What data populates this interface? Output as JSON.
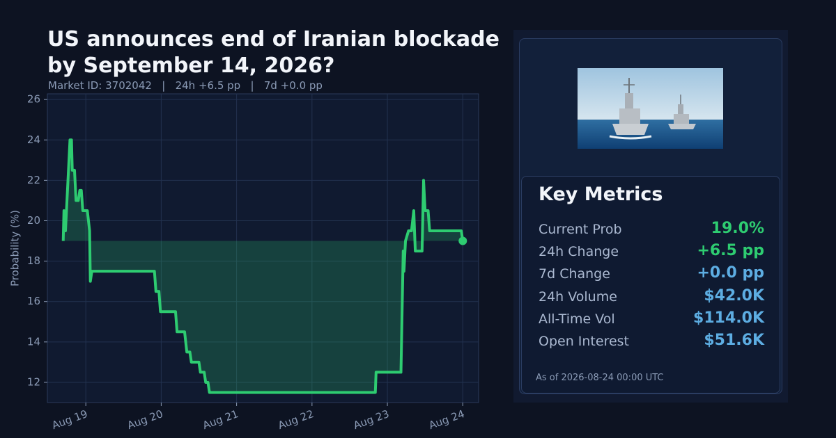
{
  "header": {
    "title": "US announces end of Iranian blockade by September 14, 2026?",
    "subtitle": "Market ID: 3702042   |   24h +6.5 pp   |   7d +0.0 pp"
  },
  "chart_data": {
    "type": "line",
    "y_label": "Probability (%)",
    "color": "#2ecc71",
    "fill": true,
    "grid": true,
    "x": [
      18.7,
      18.71,
      18.73,
      18.75,
      18.79,
      18.81,
      18.82,
      18.85,
      18.87,
      18.9,
      18.92,
      18.94,
      18.96,
      19.02,
      19.05,
      19.06,
      19.08,
      19.91,
      19.93,
      19.97,
      19.99,
      20.19,
      20.21,
      20.31,
      20.34,
      20.38,
      20.4,
      20.5,
      20.52,
      20.57,
      20.59,
      20.62,
      20.64,
      22.84,
      22.85,
      23.18,
      23.21,
      23.22,
      23.24,
      23.28,
      23.32,
      23.35,
      23.37,
      23.46,
      23.48,
      23.5,
      23.54,
      23.56,
      23.98,
      24.0
    ],
    "values": [
      19,
      20.5,
      19.5,
      21,
      24,
      24,
      22.5,
      22.5,
      21,
      21,
      21.5,
      21.5,
      20.5,
      20.5,
      19.5,
      17,
      17.5,
      17.5,
      16.5,
      16.5,
      15.5,
      15.5,
      14.5,
      14.5,
      13.5,
      13.5,
      13,
      13,
      12.5,
      12.5,
      12,
      12,
      11.5,
      11.5,
      12.5,
      12.5,
      18.5,
      17.5,
      19,
      19.5,
      19.5,
      20.5,
      18.5,
      18.5,
      22,
      20.5,
      20.5,
      19.5,
      19.5,
      19
    ],
    "xlim": [
      18.49,
      24.21
    ],
    "ylim": [
      11.0,
      26.28
    ],
    "xticks": [
      {
        "value": 19,
        "label": "Aug 19"
      },
      {
        "value": 20,
        "label": "Aug 20"
      },
      {
        "value": 21,
        "label": "Aug 21"
      },
      {
        "value": 22,
        "label": "Aug 22"
      },
      {
        "value": 23,
        "label": "Aug 23"
      },
      {
        "value": 24,
        "label": "Aug 24"
      }
    ],
    "yticks": [
      12,
      14,
      16,
      18,
      20,
      22,
      24,
      26
    ]
  },
  "metrics": {
    "title": "Key Metrics",
    "rows": [
      {
        "label": "Current Prob",
        "value": "19.0%",
        "color": "#2ecc71"
      },
      {
        "label": "24h Change",
        "value": "+6.5 pp",
        "color": "#2ecc71"
      },
      {
        "label": "7d Change",
        "value": "+0.0 pp",
        "color": "#5dade2"
      },
      {
        "label": "24h Volume",
        "value": "$42.0K",
        "color": "#5dade2"
      },
      {
        "label": "All-Time Vol",
        "value": "$114.0K",
        "color": "#5dade2"
      },
      {
        "label": "Open Interest",
        "value": "$51.6K",
        "color": "#5dade2"
      }
    ],
    "as_of": "As of 2026-08-24 00:00 UTC"
  }
}
